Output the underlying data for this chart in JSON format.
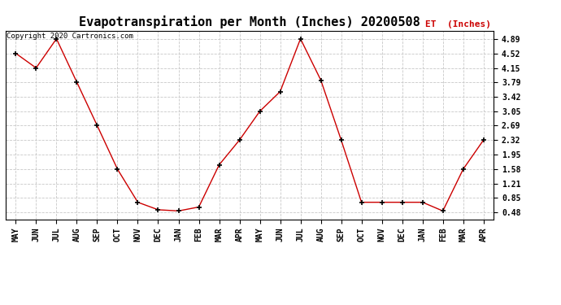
{
  "title": "Evapotranspiration per Month (Inches) 20200508",
  "legend_label": "ET  (Inches)",
  "copyright": "Copyright 2020 Cartronics.com",
  "months": [
    "MAY",
    "JUN",
    "JUL",
    "AUG",
    "SEP",
    "OCT",
    "NOV",
    "DEC",
    "JAN",
    "FEB",
    "MAR",
    "APR",
    "MAY",
    "JUN",
    "JUL",
    "AUG",
    "SEP",
    "OCT",
    "NOV",
    "DEC",
    "JAN",
    "FEB",
    "MAR",
    "APR"
  ],
  "values": [
    4.52,
    4.15,
    4.89,
    3.79,
    2.69,
    1.58,
    0.74,
    0.55,
    0.52,
    0.62,
    1.69,
    2.32,
    3.05,
    3.55,
    4.89,
    3.84,
    2.32,
    0.74,
    0.74,
    0.74,
    0.74,
    0.52,
    1.58,
    2.32
  ],
  "yticks": [
    0.48,
    0.85,
    1.21,
    1.58,
    1.95,
    2.32,
    2.69,
    3.05,
    3.42,
    3.79,
    4.15,
    4.52,
    4.89
  ],
  "ylim": [
    0.3,
    5.1
  ],
  "line_color": "#cc0000",
  "marker_color": "#000000",
  "grid_color": "#c8c8c8",
  "bg_color": "#ffffff",
  "title_fontsize": 11,
  "legend_color": "#cc0000",
  "copyright_color": "#000000"
}
